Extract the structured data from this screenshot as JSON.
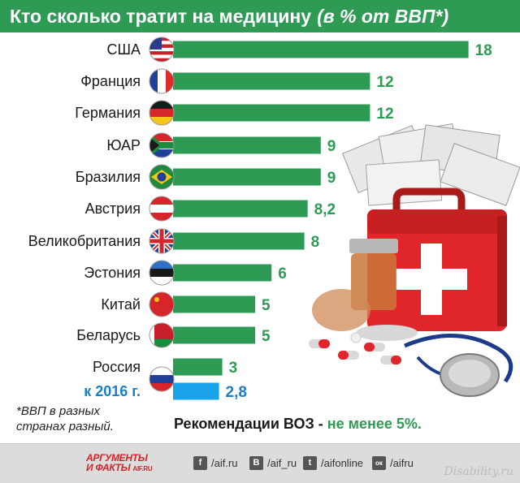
{
  "header": {
    "title": "Кто сколько тратит на медицину",
    "subtitle": "(в % от ВВП*)"
  },
  "chart_data": {
    "type": "bar",
    "orientation": "horizontal",
    "title": "Кто сколько тратит на медицину",
    "subtitle": "(в % от ВВП*)",
    "categories": [
      "США",
      "Франция",
      "Германия",
      "ЮАР",
      "Бразилия",
      "Австрия",
      "Великобритания",
      "Эстония",
      "Китай",
      "Беларусь",
      "Россия",
      "к 2016 г."
    ],
    "values": [
      18,
      12,
      12,
      9,
      9,
      8.2,
      8,
      6,
      5,
      5,
      3,
      2.8
    ],
    "value_labels": [
      "18",
      "12",
      "12",
      "9",
      "9",
      "8,2",
      "8",
      "6",
      "5",
      "5",
      "3",
      "2,8"
    ],
    "flags": [
      "us",
      "fr",
      "de",
      "za",
      "br",
      "at",
      "gb",
      "ee",
      "cn",
      "by",
      "ru",
      "none"
    ],
    "xlim": [
      0,
      18
    ],
    "grid": false,
    "colors": {
      "bar": "#2e9b55",
      "bar_forecast": "#1aa3e8",
      "label": "#2e9b55",
      "label_forecast": "#1a7fc4"
    }
  },
  "notes": {
    "footnote": "*ВВП в разных странах разный.",
    "who_prefix": "Рекомендации ВОЗ - ",
    "who_value": "не менее 5%."
  },
  "footer": {
    "logo_line1": "АРГУМЕНТЫ",
    "logo_line2": "И ФАКТЫ",
    "logo_site": "AIF.RU",
    "social": [
      {
        "icon": "facebook-icon",
        "glyph": "f",
        "label": "/aif.ru"
      },
      {
        "icon": "vk-icon",
        "glyph": "В",
        "label": "/aif_ru"
      },
      {
        "icon": "twitter-icon",
        "glyph": "t",
        "label": "/aifonline"
      },
      {
        "icon": "odnoklassniki-icon",
        "glyph": "ок",
        "label": "/aifru"
      }
    ],
    "watermark": "Disability.ru"
  }
}
